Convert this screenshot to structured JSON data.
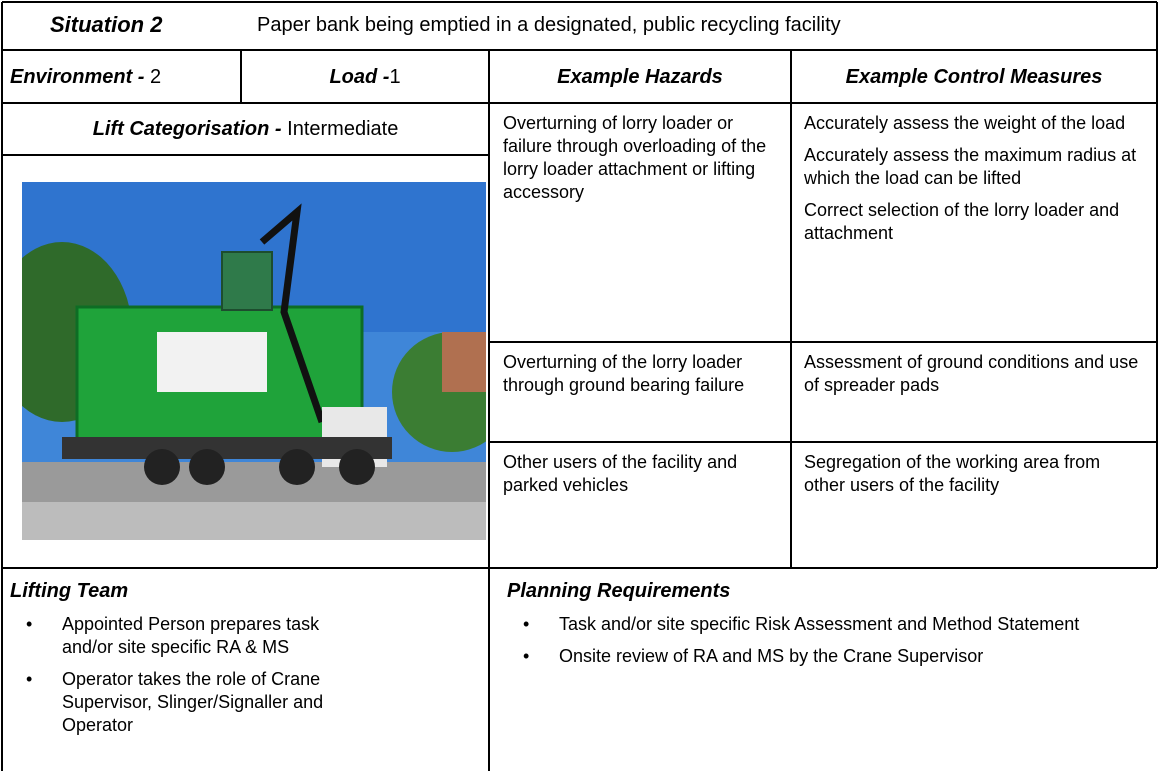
{
  "header": {
    "label": "Situation 2",
    "description": "Paper bank being emptied in a designated, public recycling facility"
  },
  "environment": {
    "label": "Environment -",
    "value": "2"
  },
  "load": {
    "label": "Load -",
    "value": "1"
  },
  "lift_categorisation": {
    "label": "Lift Categorisation -",
    "value": "Intermediate"
  },
  "table": {
    "headers": [
      "Example Hazards",
      "Example Control Measures"
    ],
    "rows": [
      {
        "hazard": "Overturning of lorry loader or failure through overloading of the lorry loader attachment or lifting accessory",
        "controls": [
          "Accurately assess the weight of the load",
          "Accurately assess the maximum radius at which the load can be lifted",
          "Correct selection of the lorry loader and attachment"
        ]
      },
      {
        "hazard": "Overturning of the lorry loader through ground bearing failure",
        "controls": [
          "Assessment of ground conditions and use of spreader pads"
        ]
      },
      {
        "hazard": "Other users of the facility and parked vehicles",
        "controls": [
          "Segregation of the working area from other users of the facility"
        ]
      }
    ]
  },
  "lifting_team": {
    "title": "Lifting Team",
    "items": [
      "Appointed Person prepares task and/or site specific RA & MS",
      "Operator takes the role of Crane Supervisor, Slinger/Signaller and Operator"
    ]
  },
  "planning_requirements": {
    "title": "Planning Requirements",
    "items": [
      "Task and/or site specific Risk Assessment  and Method Statement",
      "Onsite review of RA and MS by the Crane Supervisor"
    ]
  }
}
